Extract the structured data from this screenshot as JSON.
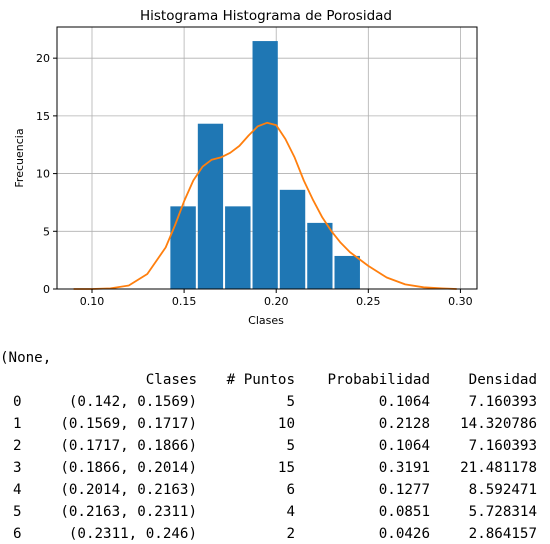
{
  "chart_data": {
    "type": "bar",
    "title": "Histograma Histograma de Porosidad",
    "xlabel": "Clases",
    "ylabel": "Frecuencia",
    "xlim": [
      0.081,
      0.309
    ],
    "ylim": [
      0,
      22.7
    ],
    "grid": true,
    "xticks": [
      0.1,
      0.15,
      0.2,
      0.25,
      0.3
    ],
    "xtick_labels": [
      "0.10",
      "0.15",
      "0.20",
      "0.25",
      "0.30"
    ],
    "yticks": [
      0,
      5,
      10,
      15,
      20
    ],
    "ytick_labels": [
      "0",
      "5",
      "10",
      "15",
      "20"
    ],
    "bar_color": "#1f77b4",
    "curve_color": "#ff7f0e",
    "bins": [
      {
        "left": 0.142,
        "right": 0.1569,
        "value": 7.160393
      },
      {
        "left": 0.1569,
        "right": 0.1717,
        "value": 14.320786
      },
      {
        "left": 0.1717,
        "right": 0.1866,
        "value": 7.160393
      },
      {
        "left": 0.1866,
        "right": 0.2014,
        "value": 21.481178
      },
      {
        "left": 0.2014,
        "right": 0.2163,
        "value": 8.592471
      },
      {
        "left": 0.2163,
        "right": 0.2311,
        "value": 5.728314
      },
      {
        "left": 0.2311,
        "right": 0.246,
        "value": 2.864157
      }
    ],
    "kde": {
      "x": [
        0.09,
        0.1,
        0.11,
        0.12,
        0.13,
        0.14,
        0.145,
        0.15,
        0.155,
        0.16,
        0.165,
        0.17,
        0.175,
        0.18,
        0.185,
        0.19,
        0.195,
        0.2,
        0.205,
        0.21,
        0.215,
        0.22,
        0.225,
        0.23,
        0.235,
        0.24,
        0.245,
        0.25,
        0.26,
        0.27,
        0.28,
        0.29,
        0.298
      ],
      "y": [
        0.0,
        0.0,
        0.05,
        0.3,
        1.3,
        3.6,
        5.5,
        7.6,
        9.4,
        10.6,
        11.2,
        11.4,
        11.8,
        12.4,
        13.3,
        14.1,
        14.4,
        14.2,
        13.0,
        11.4,
        9.4,
        7.7,
        6.2,
        5.0,
        4.0,
        3.2,
        2.6,
        2.0,
        1.0,
        0.4,
        0.15,
        0.05,
        0.0
      ]
    }
  },
  "output": {
    "prefix": "(None,",
    "columns": [
      "Clases",
      "# Puntos",
      "Probabilidad",
      "Densidad"
    ],
    "rows": [
      {
        "index": "0",
        "clases": "(0.142, 0.1569)",
        "puntos": "5",
        "probabilidad": "0.1064",
        "densidad": "7.160393"
      },
      {
        "index": "1",
        "clases": "(0.1569, 0.1717)",
        "puntos": "10",
        "probabilidad": "0.2128",
        "densidad": "14.320786"
      },
      {
        "index": "2",
        "clases": "(0.1717, 0.1866)",
        "puntos": "5",
        "probabilidad": "0.1064",
        "densidad": "7.160393"
      },
      {
        "index": "3",
        "clases": "(0.1866, 0.2014)",
        "puntos": "15",
        "probabilidad": "0.3191",
        "densidad": "21.481178"
      },
      {
        "index": "4",
        "clases": "(0.2014, 0.2163)",
        "puntos": "6",
        "probabilidad": "0.1277",
        "densidad": "8.592471"
      },
      {
        "index": "5",
        "clases": "(0.2163, 0.2311)",
        "puntos": "4",
        "probabilidad": "0.0851",
        "densidad": "5.728314"
      },
      {
        "index": "6",
        "clases": "(0.2311, 0.246)",
        "puntos": "2",
        "probabilidad": "0.0426",
        "densidad": "2.864157"
      }
    ]
  }
}
